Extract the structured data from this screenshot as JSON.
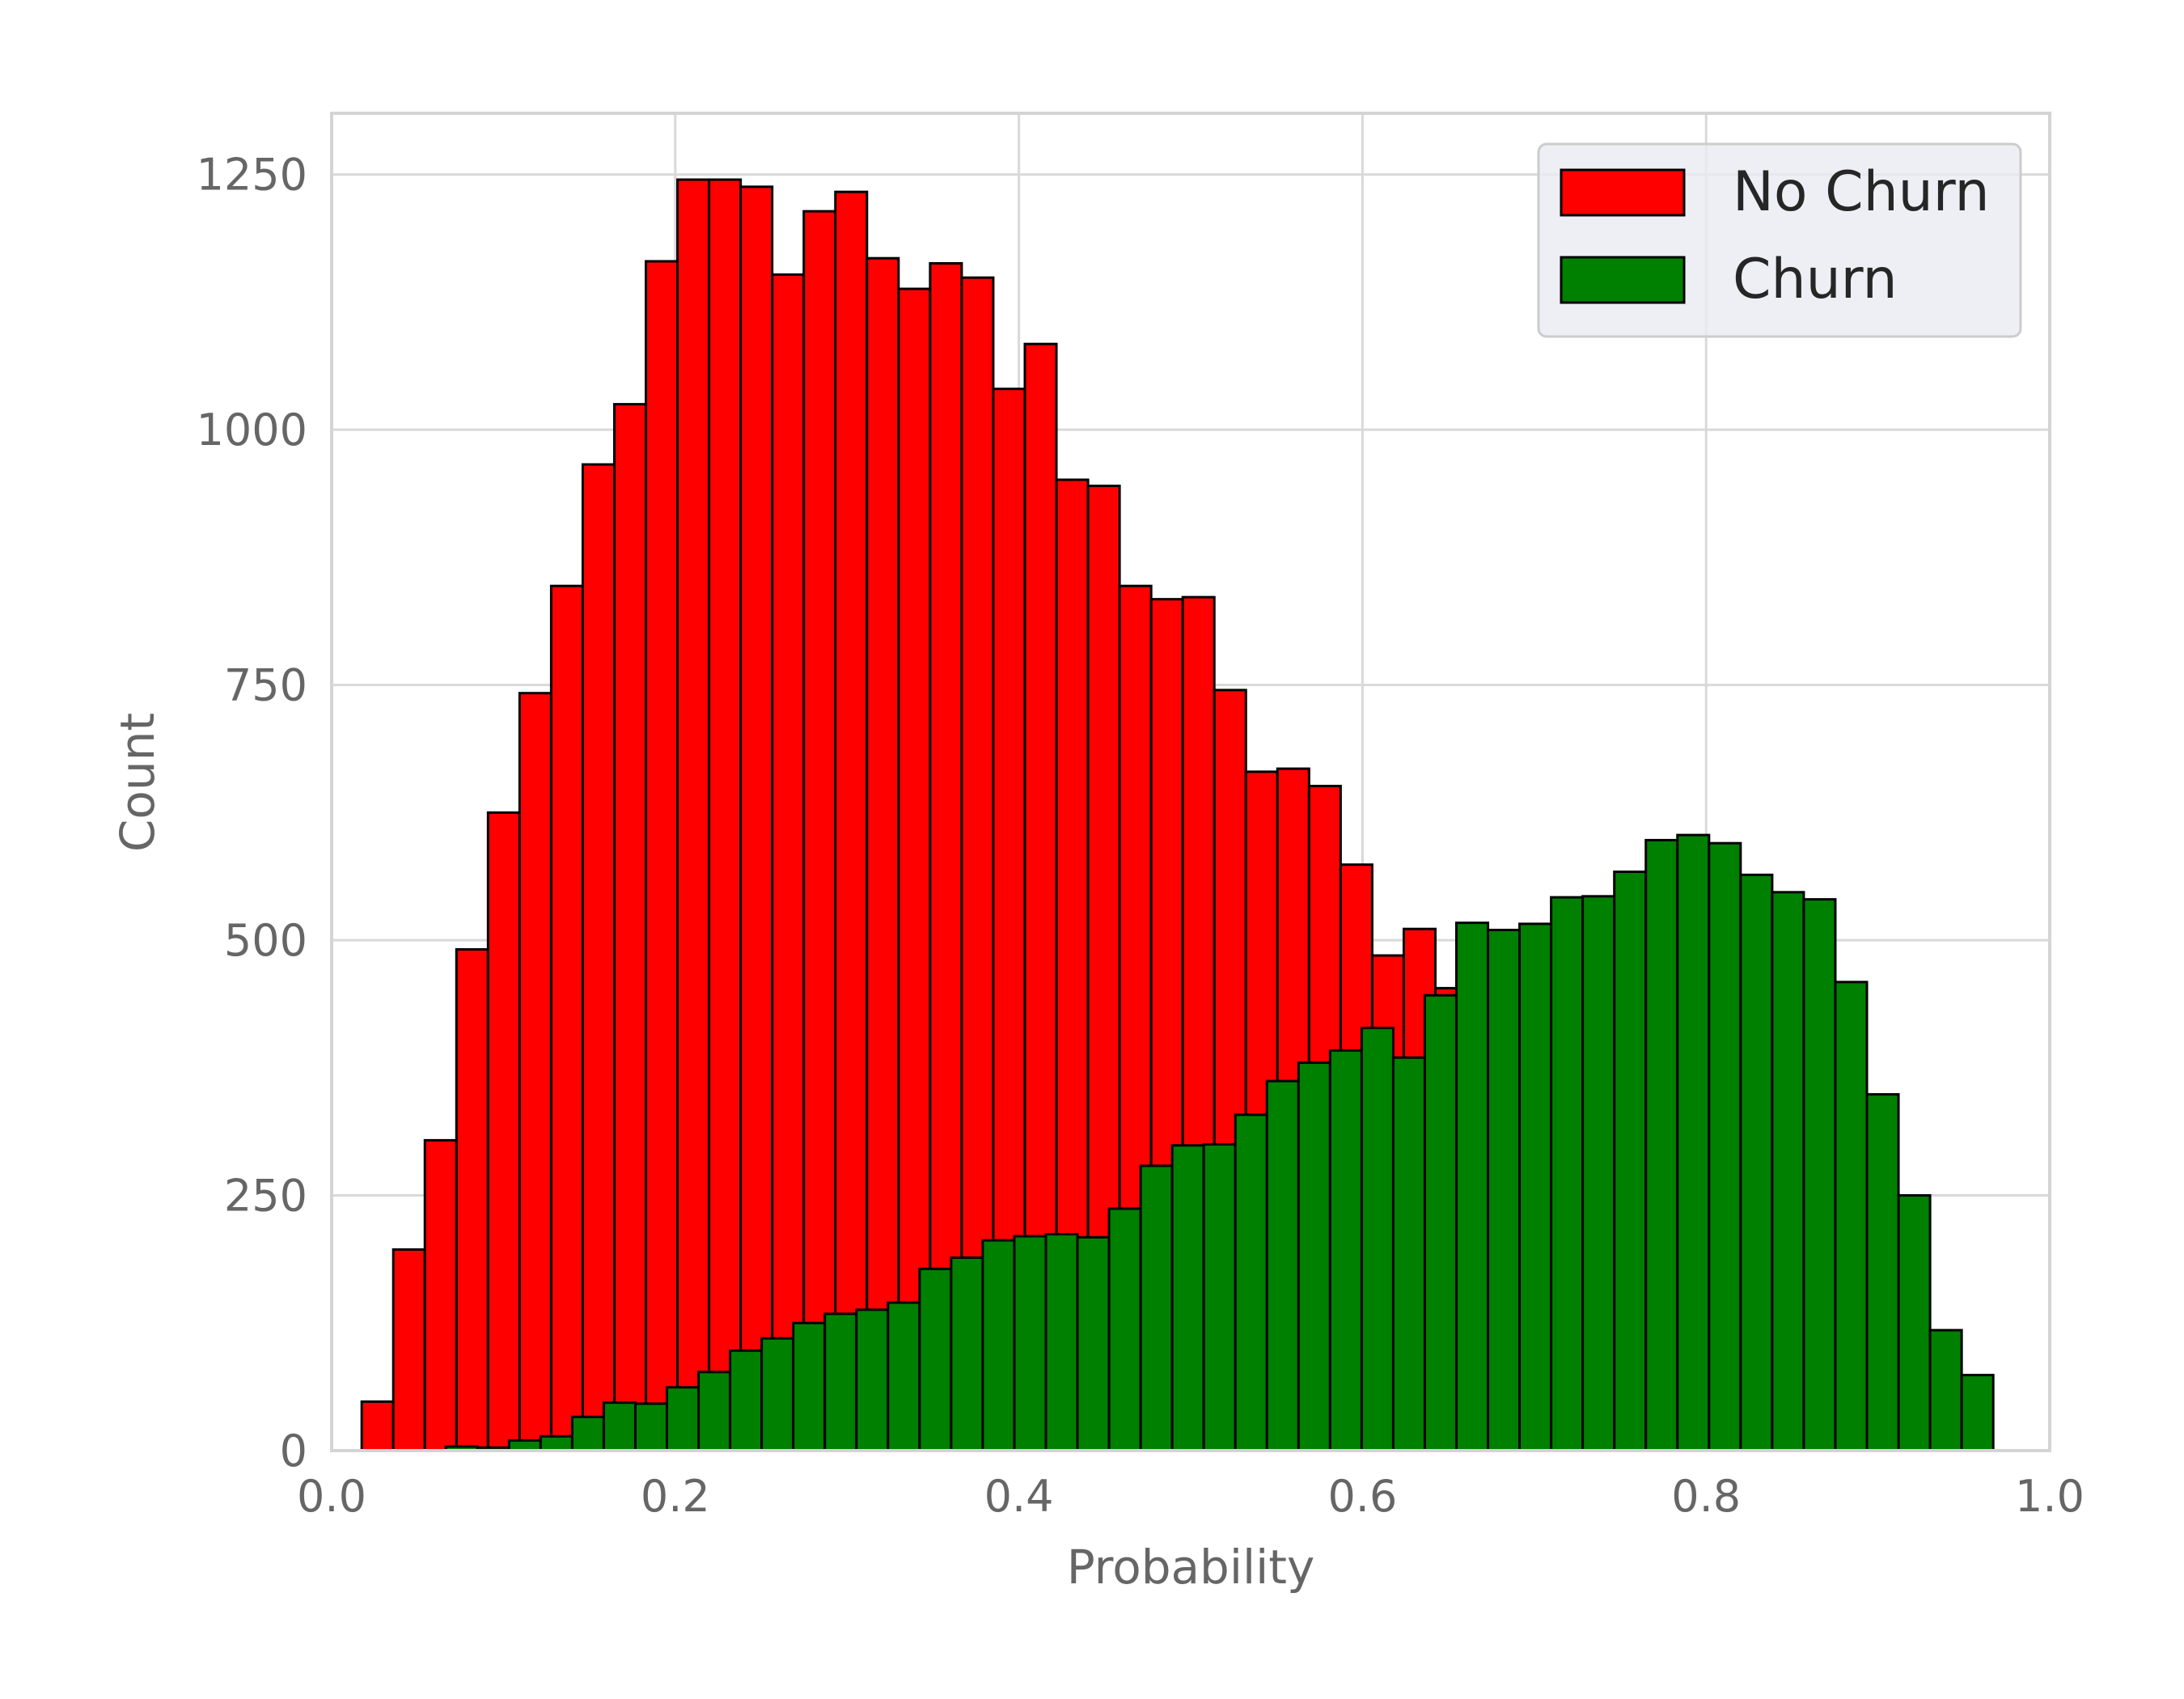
{
  "chart_data": {
    "type": "bar",
    "title": "",
    "xlabel": "Probability",
    "ylabel": "Count",
    "xlim": [
      0.0,
      1.0
    ],
    "ylim": [
      0,
      1310
    ],
    "xticks": [
      "0.0",
      "0.2",
      "0.4",
      "0.6",
      "0.8",
      "1.0"
    ],
    "yticks": [
      "0",
      "250",
      "500",
      "750",
      "1000",
      "1250"
    ],
    "grid": true,
    "legend_position": "top-right",
    "series": [
      {
        "name": "No Churn",
        "color": "#ff0000",
        "x_start": 0.0175,
        "bin_width": 0.01838,
        "values": [
          48,
          197,
          304,
          491,
          625,
          742,
          847,
          966,
          1025,
          1165,
          1245,
          1245,
          1238,
          1152,
          1214,
          1233,
          1168,
          1138,
          1163,
          1149,
          1040,
          1084,
          951,
          945,
          847,
          834,
          836,
          745,
          665,
          668,
          651,
          574,
          485,
          511,
          453,
          447
        ]
      },
      {
        "name": "Churn",
        "color": "#008000",
        "x_start": 0.0665,
        "bin_width": 0.01838,
        "values": [
          4,
          3,
          10,
          14,
          33,
          47,
          46,
          62,
          77,
          98,
          110,
          125,
          134,
          138,
          145,
          178,
          189,
          206,
          210,
          212,
          209,
          237,
          279,
          299,
          300,
          329,
          362,
          380,
          392,
          414,
          385,
          446,
          517,
          510,
          516,
          542,
          543,
          567,
          598,
          603,
          595,
          564,
          547,
          540,
          459,
          349,
          250,
          118,
          74
        ]
      }
    ]
  }
}
